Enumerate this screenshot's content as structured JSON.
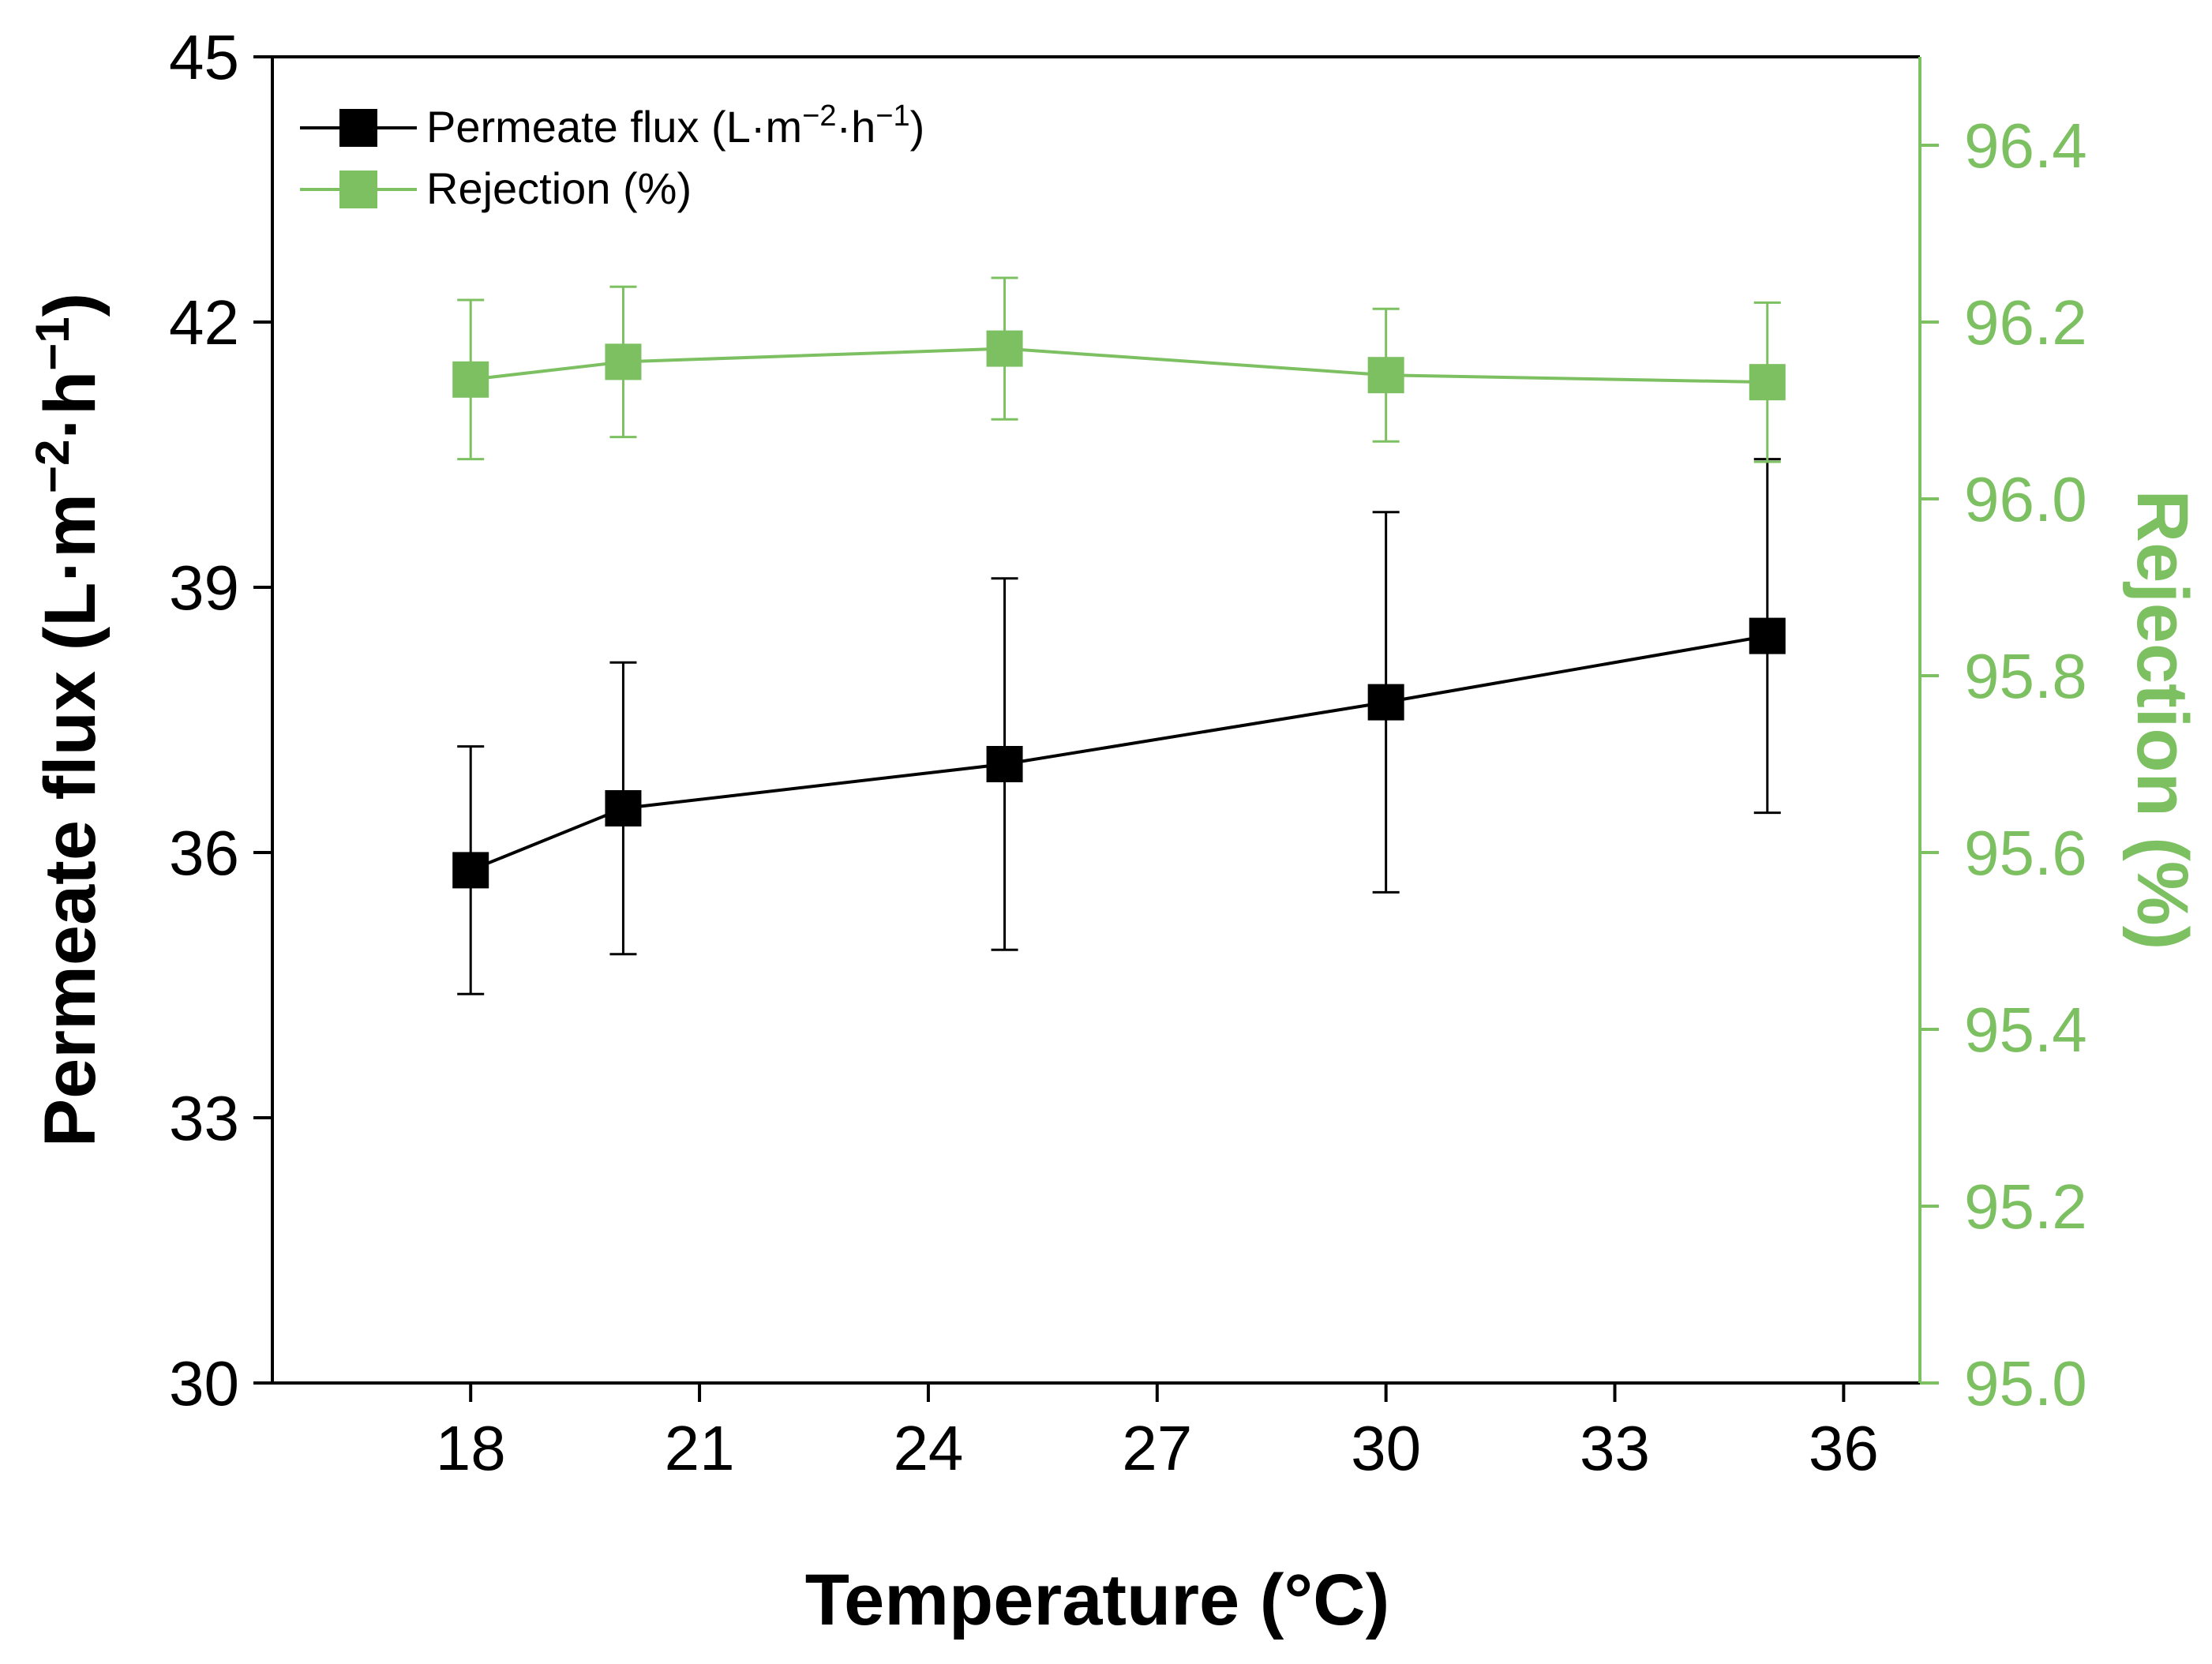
{
  "chart_data": {
    "type": "line",
    "xlabel": "Temperature (°C)",
    "x_ticks": [
      18,
      21,
      24,
      27,
      30,
      33,
      36
    ],
    "xlim": [
      15.4,
      37.0
    ],
    "x": [
      18,
      20,
      25,
      30,
      35
    ],
    "left_axis": {
      "label": {
        "base": "Permeate flux (L·m",
        "sup1": "−2",
        "mid": "·h",
        "sup2": "−1",
        "end": ")"
      },
      "ylim": [
        30,
        45
      ],
      "ticks": [
        30,
        33,
        36,
        39,
        42,
        45
      ],
      "color": "#000000"
    },
    "right_axis": {
      "label": "Rejection (%)",
      "ylim": [
        95.0,
        96.5
      ],
      "ticks": [
        "95.0",
        "95.2",
        "95.4",
        "95.6",
        "95.8",
        "96.0",
        "96.2",
        "96.4"
      ],
      "color": "#7dc062"
    },
    "series": [
      {
        "name": "Permeate flux",
        "axis": "left",
        "color": "#000000",
        "values": [
          35.8,
          36.5,
          37.0,
          37.7,
          38.45
        ],
        "error": [
          1.4,
          1.65,
          2.1,
          2.15,
          2.0
        ]
      },
      {
        "name": "Rejection",
        "axis": "right",
        "color": "#7dc062",
        "values": [
          96.135,
          96.155,
          96.17,
          96.14,
          96.132
        ],
        "error": [
          0.09,
          0.085,
          0.08,
          0.075,
          0.09
        ]
      }
    ],
    "legend": {
      "position": "top-left",
      "entries": [
        {
          "base": "Permeate flux (L·m",
          "sup1": "−2",
          "mid": "·h",
          "sup2": "−1",
          "end": ")"
        },
        {
          "base": "Rejection (%)"
        }
      ]
    }
  }
}
